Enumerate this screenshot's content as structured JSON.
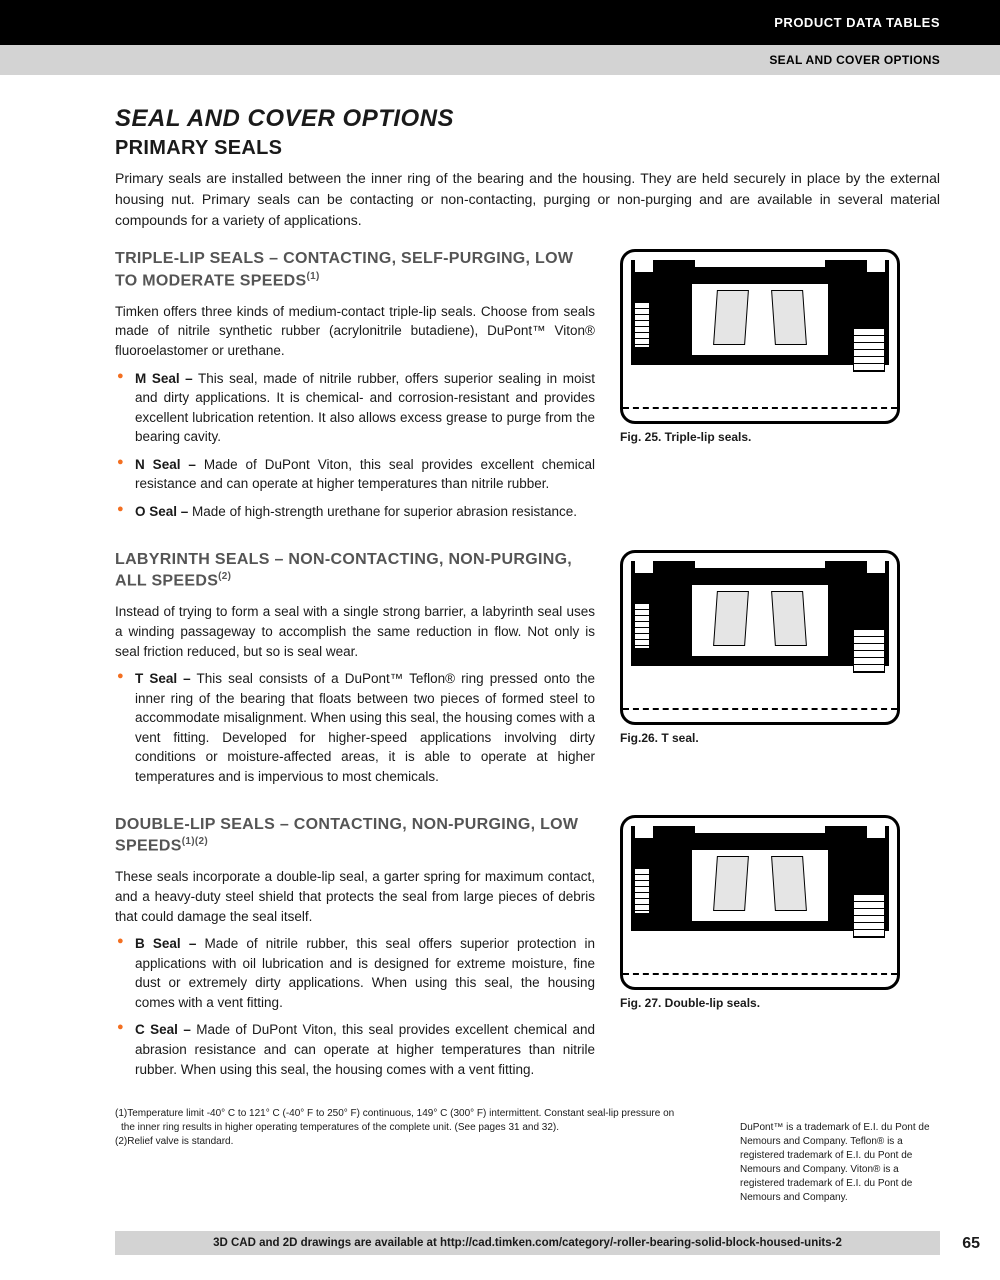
{
  "header": {
    "category": "PRODUCT DATA TABLES",
    "subcategory": "SEAL AND COVER OPTIONS"
  },
  "title": "SEAL AND COVER OPTIONS",
  "subtitle": "PRIMARY SEALS",
  "intro": "Primary seals are installed between the inner ring of the bearing and the housing. They are held securely in place by the external housing nut. Primary seals can be contacting or non-contacting, purging or non-purging and are available in several material compounds for a variety of applications.",
  "sections": [
    {
      "heading": "TRIPLE-LIP SEALS – CONTACTING, SELF-PURGING, LOW TO MODERATE SPEEDS",
      "sup": "(1)",
      "text": "Timken offers three kinds of medium-contact triple-lip seals. Choose from seals made of nitrile synthetic rubber (acrylonitrile butadiene), DuPont™ Viton® fluoroelastomer or urethane.",
      "bullets": [
        {
          "b": "M Seal –",
          "t": " This seal, made of nitrile rubber, offers superior sealing in moist and dirty applications. It is chemical- and corrosion-resistant and provides excellent lubrication retention. It also allows excess grease to purge from the bearing cavity."
        },
        {
          "b": "N Seal –",
          "t": " Made of DuPont Viton, this seal provides excellent chemical resistance and can operate at higher temperatures than nitrile rubber."
        },
        {
          "b": "O Seal –",
          "t": " Made of high-strength urethane for superior abrasion resistance."
        }
      ],
      "caption": "Fig. 25. Triple-lip seals."
    },
    {
      "heading": "LABYRINTH SEALS – NON-CONTACTING, NON-PURGING, ALL SPEEDS",
      "sup": "(2)",
      "text": "Instead of trying to form a seal with a single strong barrier, a labyrinth seal uses a winding passageway to accomplish the same reduction in flow. Not only is seal friction reduced, but so is seal wear.",
      "bullets": [
        {
          "b": "T Seal –",
          "t": " This seal consists of a DuPont™ Teflon® ring pressed onto the inner ring of the bearing that floats between two pieces of formed steel to accommodate misalignment. When using this seal, the housing comes with a vent fitting. Developed for higher-speed applications involving dirty conditions or moisture-affected areas, it is able to operate at higher temperatures and is impervious to most chemicals."
        }
      ],
      "caption": "Fig.26. T seal."
    },
    {
      "heading": "DOUBLE-LIP SEALS – CONTACTING, NON-PURGING, LOW SPEEDS",
      "sup": "(1)(2)",
      "text": "These seals incorporate a double-lip seal, a garter spring for maximum contact, and a heavy-duty steel shield that protects the seal from large pieces of debris that could damage the seal itself.",
      "bullets": [
        {
          "b": "B Seal –",
          "t": " Made of nitrile rubber, this seal offers superior protection in applications with oil lubrication and is designed for extreme moisture, fine dust or extremely dirty applications. When using this seal, the housing comes with a vent fitting."
        },
        {
          "b": "C Seal –",
          "t": " Made of DuPont Viton, this seal provides excellent chemical and abrasion resistance and can operate at higher temperatures than nitrile rubber. When using this seal, the housing comes with a vent fitting."
        }
      ],
      "caption": "Fig. 27. Double-lip seals."
    }
  ],
  "footnotes": [
    "(1)Temperature limit -40° C to 121° C (-40° F to 250° F) continuous, 149° C (300° F) intermittent. Constant seal-lip pressure on the inner ring results in higher operating temperatures of the complete unit. (See pages 31 and 32).",
    "(2)Relief valve is standard."
  ],
  "trademark": "DuPont™ is a trademark of E.I. du Pont de Nemours and Company. Teflon® is a registered trademark of E.I. du Pont de Nemours and Company. Viton® is a registered trademark of E.I. du Pont de Nemours and Company.",
  "footer": "3D CAD and 2D drawings are available at http://cad.timken.com/category/-roller-bearing-solid-block-housed-units-2",
  "pageNum": "65",
  "colors": {
    "accent": "#f36f21",
    "grayHeading": "#555"
  }
}
